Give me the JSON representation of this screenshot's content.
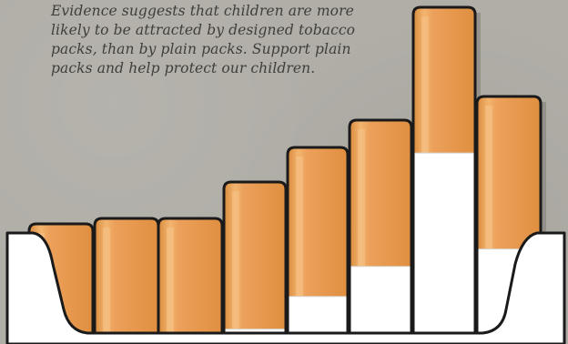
{
  "caption": {
    "lines": [
      "Evidence suggests that children are more",
      "likely to be attracted by designed tobacco",
      "packs, than by plain packs. Support plain",
      "packs and help protect our children."
    ]
  },
  "palette": {
    "background": "#b0aea7",
    "filter": "#eb9d4b",
    "filter_highlight": "#f6c58c",
    "filter_shadow": "#c87a2e",
    "paper": "#ffffff",
    "outline": "#1a1a1a",
    "pack": "#ffffff"
  },
  "cigarettes": [
    {
      "filter_top_fraction": 0.0,
      "paper_fraction": 0.0
    },
    {
      "filter_top_fraction": 0.0,
      "paper_fraction": 0.0
    },
    {
      "filter_top_fraction": 0.0,
      "paper_fraction": 0.0
    },
    {
      "filter_top_fraction": 0.0,
      "paper_fraction": 0.06
    },
    {
      "filter_top_fraction": 0.0,
      "paper_fraction": 0.22
    },
    {
      "filter_top_fraction": 0.0,
      "paper_fraction": 0.33
    },
    {
      "filter_top_fraction": 0.0,
      "paper_fraction": 0.56
    },
    {
      "filter_top_fraction": 0.0,
      "paper_fraction": 0.37
    }
  ]
}
